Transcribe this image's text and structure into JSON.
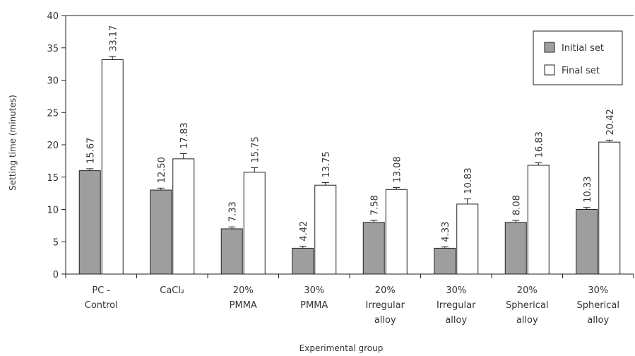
{
  "chart_data": {
    "type": "bar",
    "xlabel": "Experimental group",
    "ylabel": "Setting time (minutes)",
    "ylim": [
      0,
      40
    ],
    "yticks": [
      0,
      5,
      10,
      15,
      20,
      25,
      30,
      35,
      40
    ],
    "grid": false,
    "legend_position": "top-right",
    "categories": [
      [
        "PC -",
        "Control"
      ],
      [
        "CaCl₂"
      ],
      [
        "20%",
        "PMMA"
      ],
      [
        "30%",
        "PMMA"
      ],
      [
        "20%",
        "Irregular",
        "alloy"
      ],
      [
        "30%",
        "Irregular",
        "alloy"
      ],
      [
        "20%",
        "Spherical",
        "alloy"
      ],
      [
        "30%",
        "Spherical",
        "alloy"
      ]
    ],
    "series": [
      {
        "name": "Initial set",
        "color": "#9e9e9e",
        "values": [
          16.0,
          13.0,
          7.0,
          4.0,
          8.0,
          4.0,
          8.0,
          10.0
        ],
        "errors": [
          0.3,
          0.3,
          0.3,
          0.3,
          0.3,
          0.2,
          0.3,
          0.3
        ],
        "labels": [
          "15.67",
          "12.50",
          "7.33",
          "4.42",
          "7.58",
          "4.33",
          "8.08",
          "10.33"
        ]
      },
      {
        "name": "Final set",
        "color": "#ffffff",
        "values": [
          33.17,
          17.83,
          15.75,
          13.75,
          13.08,
          10.83,
          16.83,
          20.42
        ],
        "errors": [
          0.5,
          0.8,
          0.7,
          0.4,
          0.3,
          0.8,
          0.4,
          0.3
        ],
        "labels": [
          "33.17",
          "17.83",
          "15.75",
          "13.75",
          "13.08",
          "10.83",
          "16.83",
          "20.42"
        ]
      }
    ]
  }
}
